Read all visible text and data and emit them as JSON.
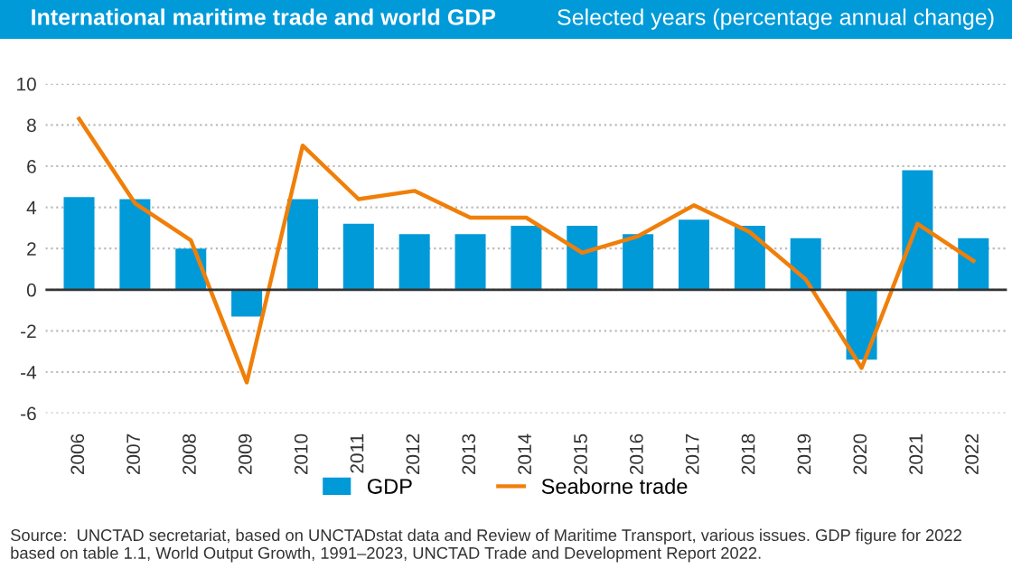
{
  "chart_data": {
    "type": "bar",
    "title": "International maritime trade and world GDP",
    "subtitle": "Selected years (percentage annual change)",
    "categories": [
      "2006",
      "2007",
      "2008",
      "2009",
      "2010",
      "2011",
      "2012",
      "2013",
      "2014",
      "2015",
      "2016",
      "2017",
      "2018",
      "2019",
      "2020",
      "2021",
      "2022"
    ],
    "series": [
      {
        "name": "GDP",
        "color": "#009ad9",
        "values": [
          4.5,
          4.4,
          2.0,
          -1.3,
          4.4,
          3.2,
          2.7,
          2.7,
          3.1,
          3.1,
          2.7,
          3.4,
          3.1,
          2.5,
          -3.4,
          5.8,
          2.5
        ]
      },
      {
        "name": "Seaborne trade",
        "type": "line",
        "color": "#f07f09",
        "values": [
          8.3,
          4.2,
          2.4,
          -4.5,
          7.0,
          4.4,
          4.8,
          3.5,
          3.5,
          1.8,
          2.6,
          4.1,
          2.8,
          0.5,
          -3.8,
          3.2,
          1.4
        ]
      }
    ],
    "ylim": [
      -6,
      10
    ],
    "yticks": [
      -6,
      -4,
      -2,
      0,
      2,
      4,
      6,
      8,
      10
    ],
    "grid": "y",
    "legend": "bottom",
    "marker": "none",
    "line_style": "solid",
    "annotations": [
      "Source:  UNCTAD secretariat, based on UNCTADstat data and Review of Maritime Transport, various issues. GDP figure for 2022 based on table 1.1, World Output Growth, 1991–2023, UNCTAD Trade and Development Report 2022."
    ]
  }
}
